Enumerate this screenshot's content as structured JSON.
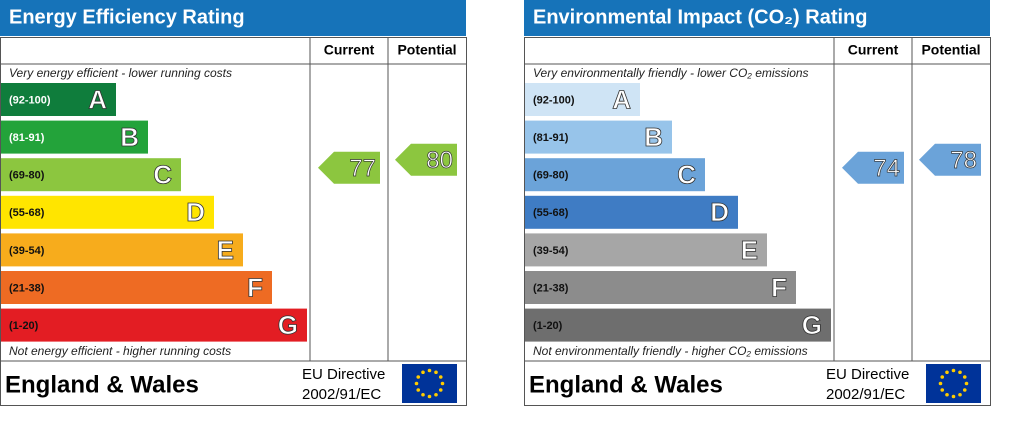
{
  "panels": [
    {
      "title": "Energy Efficiency Rating",
      "current_header": "Current",
      "potential_header": "Potential",
      "top_note": "Very energy efficient - lower running costs",
      "bottom_note": "Not energy efficient - higher running costs",
      "bands": [
        {
          "range": "(92-100)",
          "letter": "A",
          "color": "#0f7d3c"
        },
        {
          "range": "(81-91)",
          "letter": "B",
          "color": "#23a33a"
        },
        {
          "range": "(69-80)",
          "letter": "C",
          "color": "#8cc63f"
        },
        {
          "range": "(55-68)",
          "letter": "D",
          "color": "#ffe500"
        },
        {
          "range": "(39-54)",
          "letter": "E",
          "color": "#f7ac1c"
        },
        {
          "range": "(21-38)",
          "letter": "F",
          "color": "#ee6b23"
        },
        {
          "range": "(1-20)",
          "letter": "G",
          "color": "#e31d23"
        }
      ],
      "current": 77,
      "potential": 80,
      "footer": {
        "region": "England & Wales",
        "directive": "EU Directive",
        "directive_code": "2002/91/EC"
      }
    },
    {
      "title": "Environmental Impact (CO₂) Rating",
      "current_header": "Current",
      "potential_header": "Potential",
      "top_note": "Very environmentally friendly - lower CO₂ emissions",
      "bottom_note": "Not environmentally friendly - higher CO₂ emissions",
      "bands": [
        {
          "range": "(92-100)",
          "letter": "A",
          "color": "#cfe4f5"
        },
        {
          "range": "(81-91)",
          "letter": "B",
          "color": "#97c4ea"
        },
        {
          "range": "(69-80)",
          "letter": "C",
          "color": "#6ba3d9"
        },
        {
          "range": "(55-68)",
          "letter": "D",
          "color": "#3f7cc4"
        },
        {
          "range": "(39-54)",
          "letter": "E",
          "color": "#a6a6a6"
        },
        {
          "range": "(21-38)",
          "letter": "F",
          "color": "#8c8c8c"
        },
        {
          "range": "(1-20)",
          "letter": "G",
          "color": "#6e6e6e"
        }
      ],
      "current": 74,
      "potential": 78,
      "footer": {
        "region": "England & Wales",
        "directive": "EU Directive",
        "directive_code": "2002/91/EC"
      }
    }
  ]
}
